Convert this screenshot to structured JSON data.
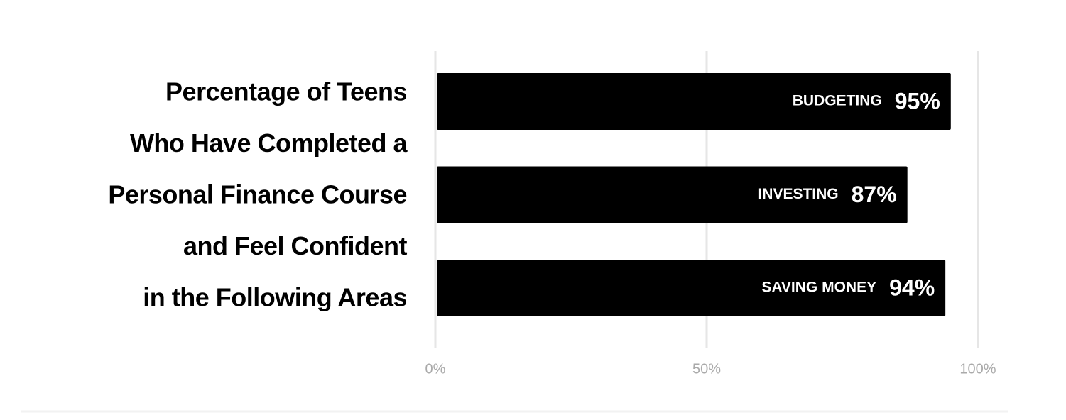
{
  "chart_data": {
    "type": "bar",
    "orientation": "horizontal",
    "title": [
      "Percentage of Teens",
      "Who Have Completed a",
      "Personal Finance Course",
      "and Feel Confident",
      "in the Following Areas"
    ],
    "categories": [
      "BUDGETING",
      "INVESTING",
      "SAVING MONEY"
    ],
    "values": [
      95,
      87,
      94
    ],
    "value_labels": [
      "95%",
      "87%",
      "94%"
    ],
    "color": "#000000",
    "xlim": [
      0,
      100
    ],
    "xticks": [
      {
        "value": 0,
        "label": "0%"
      },
      {
        "value": 50,
        "label": "50%"
      },
      {
        "value": 100,
        "label": "100%"
      }
    ],
    "grid": true
  }
}
